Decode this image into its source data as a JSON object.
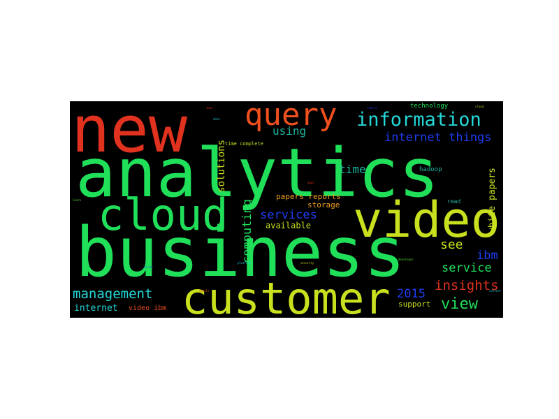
{
  "wordcloud": {
    "palette": {
      "green": "#20e05a",
      "red": "#e0321e",
      "orange": "#f0501e",
      "yellowgreen": "#c8e01e",
      "cyan": "#25d7d7",
      "blue": "#1e3cf0",
      "teal": "#1eb4a0",
      "lime": "#5af03c"
    },
    "words": [
      {
        "text": "analytics",
        "color": "#20e05a"
      },
      {
        "text": "business",
        "color": "#20e05a"
      },
      {
        "text": "new",
        "color": "#e0321e"
      },
      {
        "text": "customer",
        "color": "#c8e01e"
      },
      {
        "text": "video",
        "color": "#c8e01e"
      },
      {
        "text": "cloud",
        "color": "#20e05a"
      },
      {
        "text": "query",
        "color": "#f0501e"
      },
      {
        "text": "information",
        "color": "#25d7d7"
      },
      {
        "text": "internet things",
        "color": "#1e3cf0"
      },
      {
        "text": "management",
        "color": "#25d7d7"
      },
      {
        "text": "insights",
        "color": "#e0321e"
      },
      {
        "text": "view",
        "color": "#20e05a"
      },
      {
        "text": "service",
        "color": "#20e05a"
      },
      {
        "text": "ibm",
        "color": "#1e3cf0"
      },
      {
        "text": "see",
        "color": "#c8e01e"
      },
      {
        "text": "2015",
        "color": "#1e3cf0"
      },
      {
        "text": "services",
        "color": "#1e3cf0"
      },
      {
        "text": "using",
        "color": "#1eb4a0"
      },
      {
        "text": "time",
        "color": "#1eb4a0"
      },
      {
        "text": "computing",
        "color": "#20e05a"
      },
      {
        "text": "solutions",
        "color": "#c8e01e"
      },
      {
        "text": "available",
        "color": "#c8e01e"
      },
      {
        "text": "papers reports",
        "color": "#f0a01e"
      },
      {
        "text": "storage",
        "color": "#f0a01e"
      },
      {
        "text": "white papers",
        "color": "#c8e01e"
      },
      {
        "text": "internet",
        "color": "#25d7d7"
      },
      {
        "text": "video ibm",
        "color": "#f0501e"
      },
      {
        "text": "support",
        "color": "#c8e01e"
      },
      {
        "text": "technology",
        "color": "#20e05a"
      },
      {
        "text": "hadoop",
        "color": "#1eb4a0"
      },
      {
        "text": "read",
        "color": "#1eb4a0"
      },
      {
        "text": "time complete",
        "color": "#c8e01e"
      }
    ],
    "tiny_words": [
      {
        "text": "open",
        "color": "#e0321e"
      },
      {
        "text": "data",
        "color": "#25d7d7"
      },
      {
        "text": "report",
        "color": "#1e3cf0"
      },
      {
        "text": "cloud",
        "color": "#c8e01e"
      },
      {
        "text": "learn",
        "color": "#5af03c"
      },
      {
        "text": "mobile",
        "color": "#f0501e"
      },
      {
        "text": "platform",
        "color": "#25d7d7"
      },
      {
        "text": "social",
        "color": "#1e3cf0"
      },
      {
        "text": "security",
        "color": "#c8e01e"
      },
      {
        "text": "apps",
        "color": "#e0321e"
      },
      {
        "text": "developer",
        "color": "#5af03c"
      },
      {
        "text": "content",
        "color": "#25d7d7"
      }
    ]
  }
}
